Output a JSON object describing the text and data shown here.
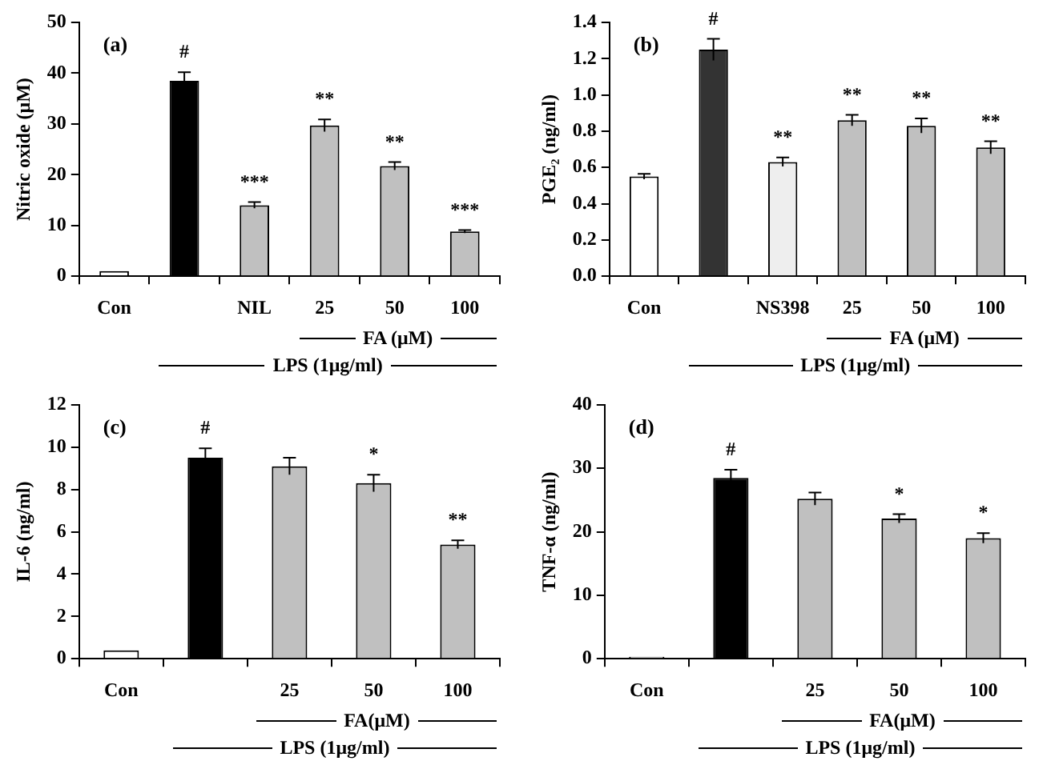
{
  "chart_data": [
    {
      "type": "bar",
      "ylabel": "Nitric oxide (μM)",
      "categories": [
        "Con",
        null,
        "NIL",
        "25",
        "50",
        "100"
      ],
      "values": [
        1,
        38.5,
        14,
        29.7,
        21.7,
        8.8
      ],
      "errors": [
        null,
        1.7,
        0.6,
        1.2,
        0.8,
        0.3
      ],
      "colors": [
        "#ffffff",
        "#000000",
        "#c0c0c0",
        "#c0c0c0",
        "#c0c0c0",
        "#c0c0c0"
      ],
      "value_labels": [
        null,
        "#",
        "***",
        "**",
        "**",
        "***"
      ],
      "ylim": [
        0,
        50
      ],
      "yticks": [
        0,
        10,
        20,
        30,
        40,
        50
      ],
      "annotations": [
        "(a)",
        "FA (μM)",
        "LPS (1μg/ml)"
      ]
    },
    {
      "type": "bar",
      "ylabel": "PGE₂ (ng/ml)",
      "categories": [
        "Con",
        null,
        "NS398",
        "25",
        "50",
        "100"
      ],
      "values": [
        0.55,
        1.25,
        0.63,
        0.86,
        0.83,
        0.71
      ],
      "errors": [
        0.015,
        0.06,
        0.025,
        0.03,
        0.04,
        0.035
      ],
      "colors": [
        "#ffffff",
        "#333333",
        "#eeeeee",
        "#c0c0c0",
        "#c0c0c0",
        "#c0c0c0"
      ],
      "value_labels": [
        null,
        "#",
        "**",
        "**",
        "**",
        "**"
      ],
      "ylim": [
        0,
        1.4
      ],
      "yticks": [
        {
          "value": 0,
          "label": "0.0"
        },
        {
          "value": 0.2,
          "label": "0.2"
        },
        {
          "value": 0.4,
          "label": "0.4"
        },
        {
          "value": 0.6,
          "label": "0.6"
        },
        {
          "value": 0.8,
          "label": "0.8"
        },
        {
          "value": 1,
          "label": "1.0"
        },
        {
          "value": 1.2,
          "label": "1.2"
        },
        {
          "value": 1.4,
          "label": "1.4"
        }
      ],
      "annotations": [
        "(b)",
        "FA (μM)",
        "LPS (1μg/ml)"
      ]
    },
    {
      "type": "bar",
      "ylabel": "IL-6 (ng/ml)",
      "categories": [
        "Con",
        null,
        "25",
        "50",
        "100"
      ],
      "values": [
        0.4,
        9.5,
        9.1,
        8.3,
        5.4
      ],
      "errors": [
        null,
        0.45,
        0.4,
        0.4,
        0.2
      ],
      "colors": [
        "#ffffff",
        "#000000",
        "#c0c0c0",
        "#c0c0c0",
        "#c0c0c0"
      ],
      "value_labels": [
        null,
        "#",
        null,
        "*",
        "**"
      ],
      "ylim": [
        0,
        12
      ],
      "yticks": [
        0,
        2,
        4,
        6,
        8,
        10,
        12
      ],
      "annotations": [
        "(c)",
        "FA(μM)",
        "LPS (1μg/ml)"
      ]
    },
    {
      "type": "bar",
      "ylabel": "TNF-α (ng/ml)",
      "categories": [
        "Con",
        null,
        "25",
        "50",
        "100"
      ],
      "values": [
        0.3,
        28.5,
        25.2,
        22.1,
        19
      ],
      "errors": [
        null,
        1.3,
        1,
        0.7,
        0.8
      ],
      "colors": [
        "#ffffff",
        "#000000",
        "#c0c0c0",
        "#c0c0c0",
        "#c0c0c0"
      ],
      "value_labels": [
        null,
        "#",
        null,
        "*",
        "*"
      ],
      "ylim": [
        0,
        40
      ],
      "yticks": [
        0,
        10,
        20,
        30,
        40
      ],
      "annotations": [
        "(d)",
        "FA(μM)",
        "LPS (1μg/ml)"
      ]
    }
  ]
}
